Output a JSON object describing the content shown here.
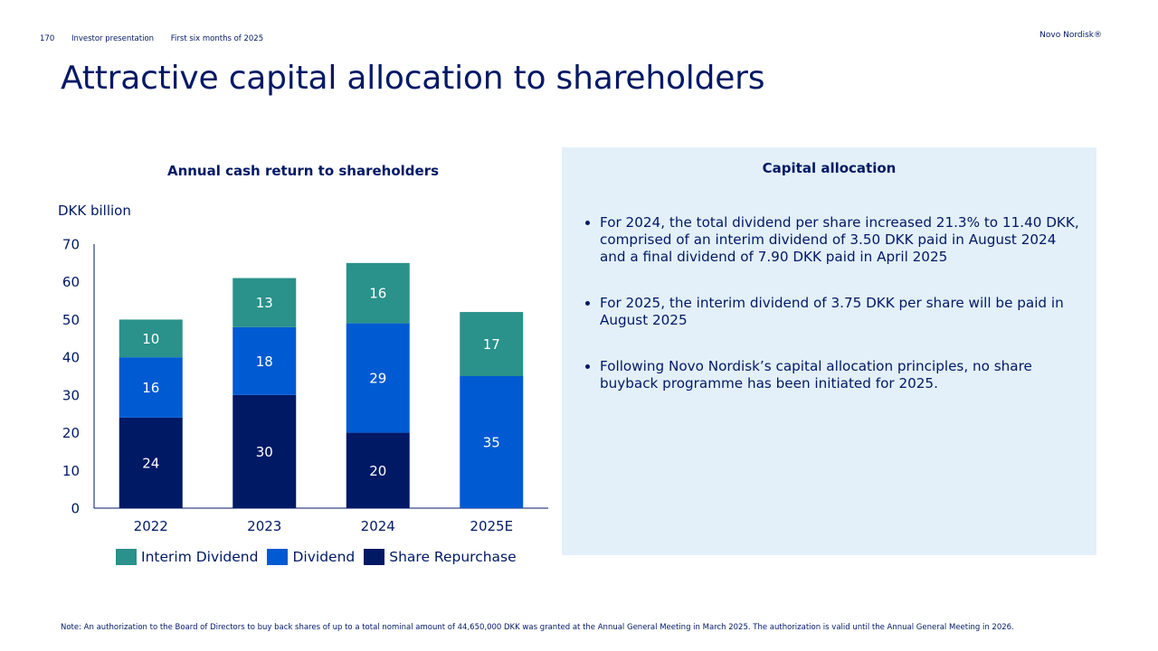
{
  "header": {
    "page_number": "170",
    "section": "Investor presentation",
    "period": "First six months of 2025",
    "brand": "Novo Nordisk®"
  },
  "title": "Attractive capital allocation to shareholders",
  "chart_data": {
    "type": "bar",
    "stacked": true,
    "title": "Annual cash return to shareholders",
    "ylabel": "DKK billion",
    "xlabel": "",
    "ylim": [
      0,
      70
    ],
    "yticks": [
      0,
      10,
      20,
      30,
      40,
      50,
      60,
      70
    ],
    "categories": [
      "2022",
      "2023",
      "2024",
      "2025E"
    ],
    "series": [
      {
        "name": "Share Repurchase",
        "color": "#001965",
        "values": [
          24,
          30,
          20,
          0
        ]
      },
      {
        "name": "Dividend",
        "color": "#005ad2",
        "values": [
          16,
          18,
          29,
          35
        ]
      },
      {
        "name": "Interim Dividend",
        "color": "#2a918b",
        "values": [
          10,
          13,
          16,
          17
        ]
      }
    ],
    "legend_order": [
      "Interim Dividend",
      "Dividend",
      "Share Repurchase"
    ],
    "legend_position": "bottom",
    "grid": false
  },
  "panel": {
    "title": "Capital allocation",
    "bullets": [
      "For 2024, the total dividend per share increased 21.3% to 11.40 DKK, comprised of an interim dividend of 3.50 DKK paid in August 2024 and a final dividend of 7.90 DKK paid in April 2025",
      "For 2025, the interim dividend of 3.75 DKK per share will be paid in August 2025",
      "Following Novo Nordisk’s capital allocation principles, no share buyback programme has been initiated for 2025."
    ]
  },
  "footnote": "Note: An authorization to the Board of Directors to buy back shares of up to a total nominal amount of 44,650,000 DKK was granted at the Annual General Meeting in March 2025. The authorization is valid until the Annual General Meeting in 2026."
}
